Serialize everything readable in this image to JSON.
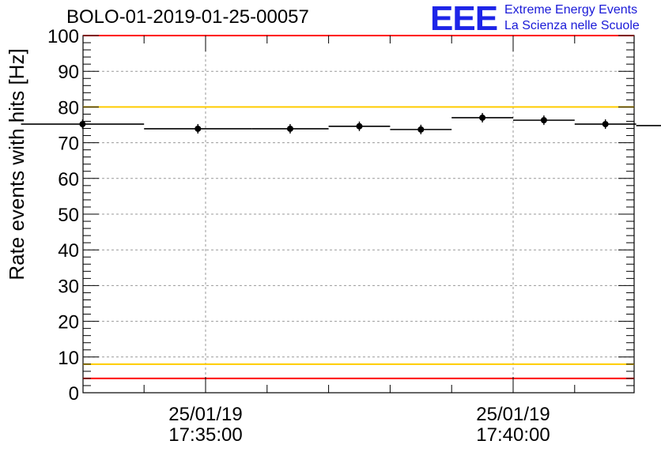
{
  "header": {
    "title": "BOLO-01-2019-01-25-00057",
    "logo": {
      "mark": "EEE",
      "line1": "Extreme Energy Events",
      "line2": "La Scienza nelle Scuole",
      "color": "#1d24e8"
    }
  },
  "chart_data": {
    "type": "scatter",
    "title": "BOLO-01-2019-01-25-00057",
    "xlabel": "",
    "ylabel": "Rate events with hits [Hz]",
    "ylim": [
      0,
      100
    ],
    "y_ticks": [
      "0",
      "10",
      "20",
      "30",
      "40",
      "50",
      "60",
      "70",
      "80",
      "90",
      "100"
    ],
    "x_ticks": [
      {
        "date": "25/01/19",
        "time": "17:35:00"
      },
      {
        "date": "25/01/19",
        "time": "17:40:00"
      }
    ],
    "grid": true,
    "series": [
      {
        "bins": [
          {
            "start": "17:32:00",
            "end": "17:34:00",
            "value": 75.2
          },
          {
            "start": "17:34:00",
            "end": "17:35:45",
            "value": 73.9
          },
          {
            "start": "17:35:45",
            "end": "17:37:00",
            "value": 73.9
          },
          {
            "start": "17:37:00",
            "end": "17:38:00",
            "value": 74.6
          },
          {
            "start": "17:38:00",
            "end": "17:39:00",
            "value": 73.7
          },
          {
            "start": "17:39:00",
            "end": "17:40:00",
            "value": 77.0
          },
          {
            "start": "17:40:00",
            "end": "17:41:00",
            "value": 76.3
          },
          {
            "start": "17:41:00",
            "end": "17:42:00",
            "value": 75.2
          },
          {
            "start": "17:42:00",
            "end": "17:43:00",
            "value": 74.8
          }
        ],
        "color": "#000000"
      }
    ],
    "reference_lines": [
      {
        "value": 100,
        "color": "#ff0000"
      },
      {
        "value": 80,
        "color": "#ffcc00"
      },
      {
        "value": 8,
        "color": "#ffcc00"
      },
      {
        "value": 4,
        "color": "#ff0000"
      }
    ]
  }
}
